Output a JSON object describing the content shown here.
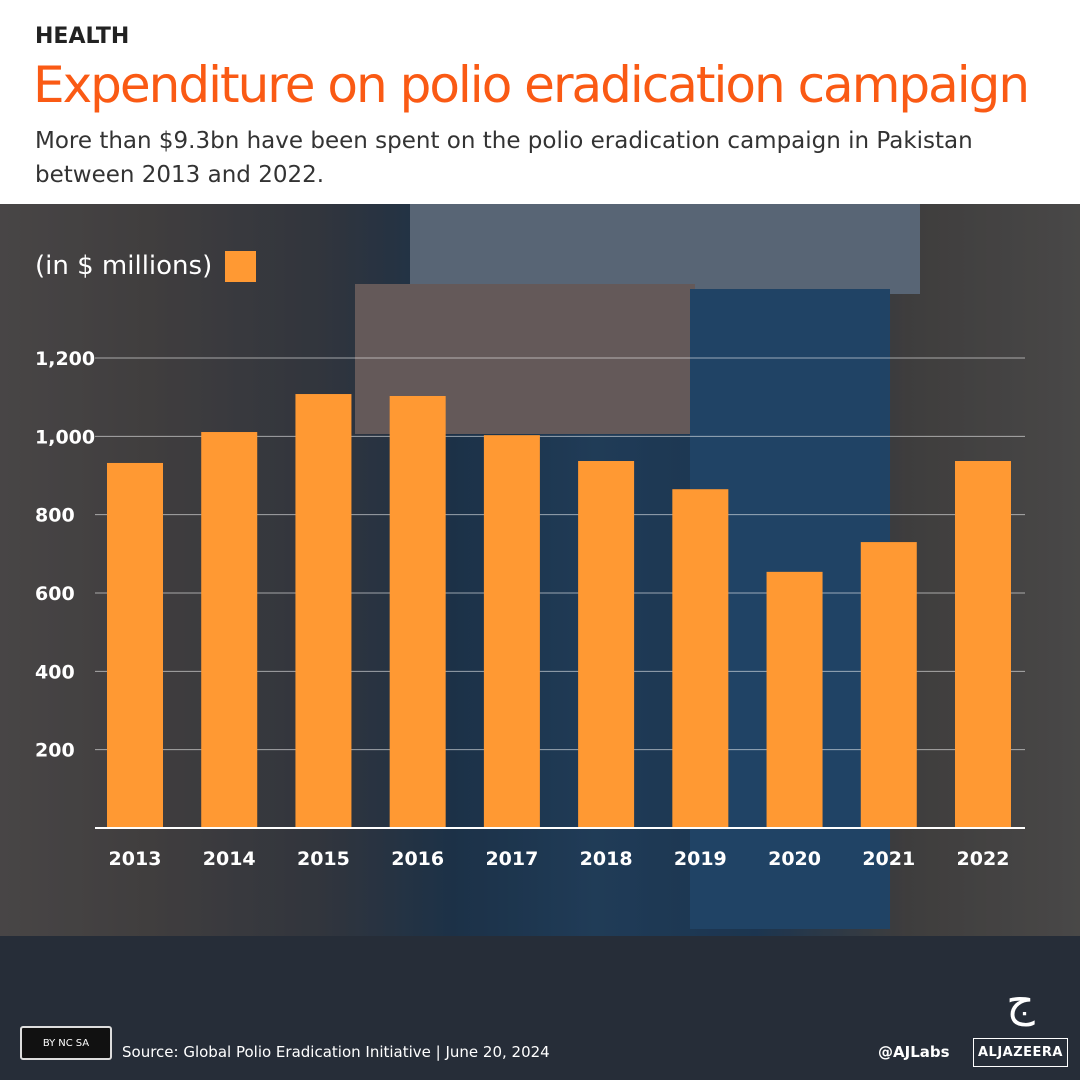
{
  "header": {
    "kicker": "HEALTH",
    "title": "Expenditure on polio eradication campaign",
    "subtitle": "More than $9.3bn have been spent on the polio eradication campaign in Pakistan between 2013 and 2022."
  },
  "chart_data": {
    "type": "bar",
    "unit_label": "(in $ millions)",
    "categories": [
      "2013",
      "2014",
      "2015",
      "2016",
      "2017",
      "2018",
      "2019",
      "2020",
      "2021",
      "2022"
    ],
    "values": [
      932,
      1011,
      1108,
      1103,
      1003,
      937,
      865,
      654,
      730,
      937
    ],
    "ylim": [
      0,
      1200
    ],
    "yticks": [
      200,
      400,
      600,
      800,
      1000,
      1200
    ],
    "ytick_labels": [
      "200",
      "400",
      "600",
      "800",
      "1,000",
      "1,200"
    ],
    "grid": true,
    "bar_color": "#ff9933",
    "legend": "top-left"
  },
  "footer": {
    "license": "cc",
    "license_parts": [
      "BY",
      "NC",
      "SA"
    ],
    "source": "Source:  Global Polio Eradication Initiative  |  June 20, 2024",
    "handle": "@AJLabs",
    "brand": "ALJAZEERA"
  }
}
